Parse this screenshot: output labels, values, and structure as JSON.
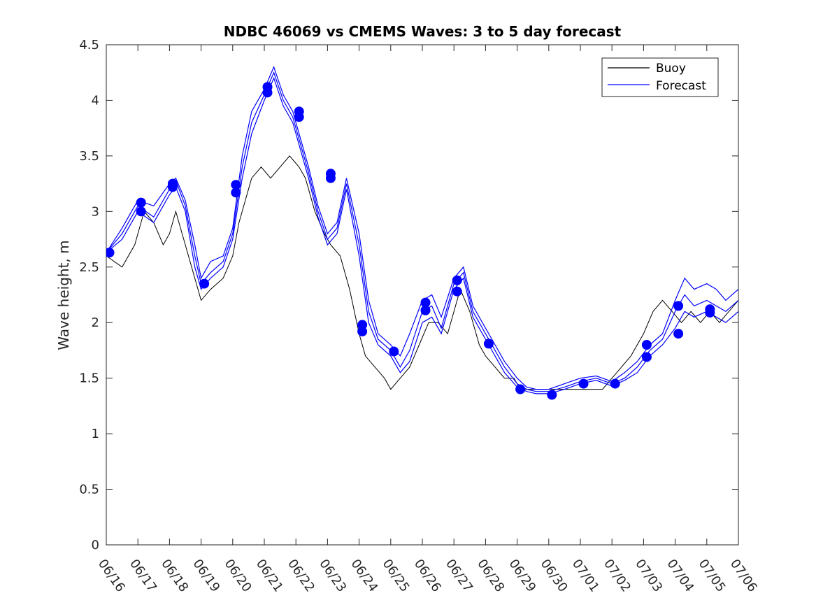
{
  "chart_data": {
    "type": "line",
    "title": "NDBC 46069 vs CMEMS Waves: 3 to 5 day forecast",
    "xlabel": "",
    "ylabel": "Wave height, m",
    "xlim": [
      "06/16",
      "07/06"
    ],
    "ylim": [
      0,
      4.5
    ],
    "y_ticks": [
      "0",
      "0.5",
      "1",
      "1.5",
      "2",
      "2.5",
      "3",
      "3.5",
      "4",
      "4.5"
    ],
    "x_ticks": [
      "06/16",
      "06/17",
      "06/18",
      "06/19",
      "06/20",
      "06/21",
      "06/22",
      "06/23",
      "06/24",
      "06/25",
      "06/26",
      "06/27",
      "06/28",
      "06/29",
      "06/30",
      "07/01",
      "07/02",
      "07/03",
      "07/04",
      "07/05",
      "07/06"
    ],
    "grid": false,
    "legend": {
      "position": "top-right",
      "entries": [
        "Buoy",
        "Forecast"
      ]
    },
    "colors": {
      "buoy": "#000000",
      "forecast": "#0000ff",
      "axis": "#262626"
    },
    "buoy": {
      "name": "Buoy",
      "x_days": [
        0.0,
        0.5,
        0.9,
        1.0,
        1.2,
        1.5,
        1.8,
        2.0,
        2.2,
        2.5,
        2.8,
        3.0,
        3.3,
        3.7,
        4.0,
        4.2,
        4.4,
        4.6,
        4.9,
        5.2,
        5.5,
        5.8,
        6.1,
        6.3,
        6.6,
        6.9,
        7.1,
        7.4,
        7.7,
        8.0,
        8.2,
        8.5,
        8.8,
        9.0,
        9.3,
        9.6,
        9.9,
        10.2,
        10.5,
        10.8,
        11.0,
        11.2,
        11.5,
        11.8,
        12.0,
        12.3,
        12.6,
        12.9,
        13.1,
        13.4,
        13.7,
        14.0,
        14.3,
        14.6,
        15.0,
        15.4,
        15.7,
        16.0,
        16.3,
        16.6,
        17.0,
        17.3,
        17.6,
        17.9,
        18.2,
        18.5,
        18.8,
        19.1,
        19.4,
        19.7,
        20.0
      ],
      "values": [
        2.6,
        2.5,
        2.7,
        2.8,
        3.0,
        2.9,
        2.7,
        2.8,
        3.0,
        2.7,
        2.4,
        2.2,
        2.3,
        2.4,
        2.6,
        2.9,
        3.1,
        3.3,
        3.4,
        3.3,
        3.4,
        3.5,
        3.4,
        3.3,
        3.0,
        2.8,
        2.7,
        2.6,
        2.3,
        1.9,
        1.7,
        1.6,
        1.5,
        1.4,
        1.5,
        1.6,
        1.8,
        2.0,
        2.0,
        1.9,
        2.1,
        2.3,
        2.1,
        1.8,
        1.7,
        1.6,
        1.5,
        1.5,
        1.4,
        1.4,
        1.4,
        1.4,
        1.4,
        1.4,
        1.4,
        1.4,
        1.4,
        1.5,
        1.6,
        1.7,
        1.9,
        2.1,
        2.2,
        2.1,
        2.0,
        2.1,
        2.0,
        2.1,
        2.0,
        2.1,
        2.2
      ]
    },
    "forecast": {
      "name": "Forecast",
      "x_days": [
        0.0,
        0.5,
        1.0,
        1.5,
        2.0,
        2.2,
        2.5,
        2.8,
        3.0,
        3.3,
        3.7,
        4.0,
        4.3,
        4.6,
        5.0,
        5.3,
        5.6,
        5.9,
        6.1,
        6.4,
        6.7,
        7.0,
        7.3,
        7.6,
        8.0,
        8.3,
        8.6,
        9.0,
        9.3,
        9.6,
        10.0,
        10.3,
        10.6,
        11.0,
        11.3,
        11.6,
        12.0,
        12.3,
        12.6,
        13.0,
        13.3,
        13.6,
        14.0,
        14.5,
        15.0,
        15.5,
        16.0,
        16.4,
        16.8,
        17.2,
        17.6,
        18.0,
        18.3,
        18.6,
        19.0,
        19.3,
        19.6,
        20.0
      ],
      "runs": [
        {
          "name": "Forecast",
          "values": [
            2.63,
            2.8,
            3.05,
            2.95,
            3.2,
            3.28,
            3.05,
            2.6,
            2.35,
            2.45,
            2.55,
            2.8,
            3.4,
            3.8,
            4.05,
            4.25,
            4.0,
            3.85,
            3.65,
            3.35,
            3.0,
            2.75,
            2.85,
            3.25,
            2.7,
            2.1,
            1.85,
            1.75,
            1.6,
            1.75,
            2.1,
            2.15,
            1.95,
            2.35,
            2.45,
            2.1,
            1.9,
            1.75,
            1.6,
            1.45,
            1.4,
            1.38,
            1.38,
            1.42,
            1.47,
            1.5,
            1.45,
            1.5,
            1.6,
            1.75,
            1.85,
            2.1,
            2.25,
            2.15,
            2.2,
            2.15,
            2.1,
            2.2
          ]
        },
        {
          "name": "Forecast",
          "values": [
            2.63,
            2.85,
            3.1,
            3.05,
            3.25,
            3.3,
            3.1,
            2.7,
            2.4,
            2.55,
            2.6,
            2.85,
            3.5,
            3.9,
            4.1,
            4.3,
            4.05,
            3.9,
            3.7,
            3.4,
            3.05,
            2.8,
            2.9,
            3.3,
            2.8,
            2.2,
            1.9,
            1.8,
            1.7,
            1.9,
            2.2,
            2.25,
            2.05,
            2.4,
            2.5,
            2.15,
            1.95,
            1.8,
            1.65,
            1.5,
            1.42,
            1.4,
            1.4,
            1.45,
            1.5,
            1.52,
            1.47,
            1.55,
            1.65,
            1.8,
            1.9,
            2.2,
            2.4,
            2.3,
            2.35,
            2.3,
            2.2,
            2.3
          ]
        },
        {
          "name": "Forecast",
          "values": [
            2.63,
            2.75,
            3.0,
            2.9,
            3.15,
            3.22,
            3.0,
            2.5,
            2.3,
            2.4,
            2.5,
            2.75,
            3.3,
            3.7,
            4.0,
            4.2,
            3.95,
            3.8,
            3.6,
            3.3,
            2.95,
            2.7,
            2.8,
            3.2,
            2.6,
            2.0,
            1.8,
            1.7,
            1.55,
            1.65,
            2.0,
            2.05,
            1.9,
            2.3,
            2.4,
            2.05,
            1.85,
            1.7,
            1.55,
            1.42,
            1.38,
            1.36,
            1.36,
            1.4,
            1.45,
            1.48,
            1.43,
            1.48,
            1.55,
            1.7,
            1.8,
            1.95,
            2.1,
            2.05,
            2.1,
            2.05,
            2.0,
            2.1
          ]
        }
      ],
      "markers": [
        {
          "x": 0.1,
          "y": 2.63
        },
        {
          "x": 1.1,
          "y": 3.0
        },
        {
          "x": 1.1,
          "y": 3.08
        },
        {
          "x": 2.1,
          "y": 3.22
        },
        {
          "x": 2.1,
          "y": 3.25
        },
        {
          "x": 3.1,
          "y": 2.35
        },
        {
          "x": 4.1,
          "y": 3.17
        },
        {
          "x": 4.1,
          "y": 3.24
        },
        {
          "x": 5.1,
          "y": 4.07
        },
        {
          "x": 5.1,
          "y": 4.12
        },
        {
          "x": 6.1,
          "y": 3.85
        },
        {
          "x": 6.1,
          "y": 3.9
        },
        {
          "x": 7.1,
          "y": 3.3
        },
        {
          "x": 7.1,
          "y": 3.34
        },
        {
          "x": 8.1,
          "y": 1.92
        },
        {
          "x": 8.1,
          "y": 1.98
        },
        {
          "x": 9.1,
          "y": 1.74
        },
        {
          "x": 10.1,
          "y": 2.11
        },
        {
          "x": 10.1,
          "y": 2.18
        },
        {
          "x": 11.1,
          "y": 2.28
        },
        {
          "x": 11.1,
          "y": 2.38
        },
        {
          "x": 12.1,
          "y": 1.81
        },
        {
          "x": 13.1,
          "y": 1.4
        },
        {
          "x": 14.1,
          "y": 1.35
        },
        {
          "x": 15.1,
          "y": 1.45
        },
        {
          "x": 16.1,
          "y": 1.45
        },
        {
          "x": 17.1,
          "y": 1.69
        },
        {
          "x": 17.1,
          "y": 1.8
        },
        {
          "x": 18.1,
          "y": 1.9
        },
        {
          "x": 18.1,
          "y": 2.15
        },
        {
          "x": 19.1,
          "y": 2.09
        },
        {
          "x": 19.1,
          "y": 2.12
        }
      ]
    }
  }
}
